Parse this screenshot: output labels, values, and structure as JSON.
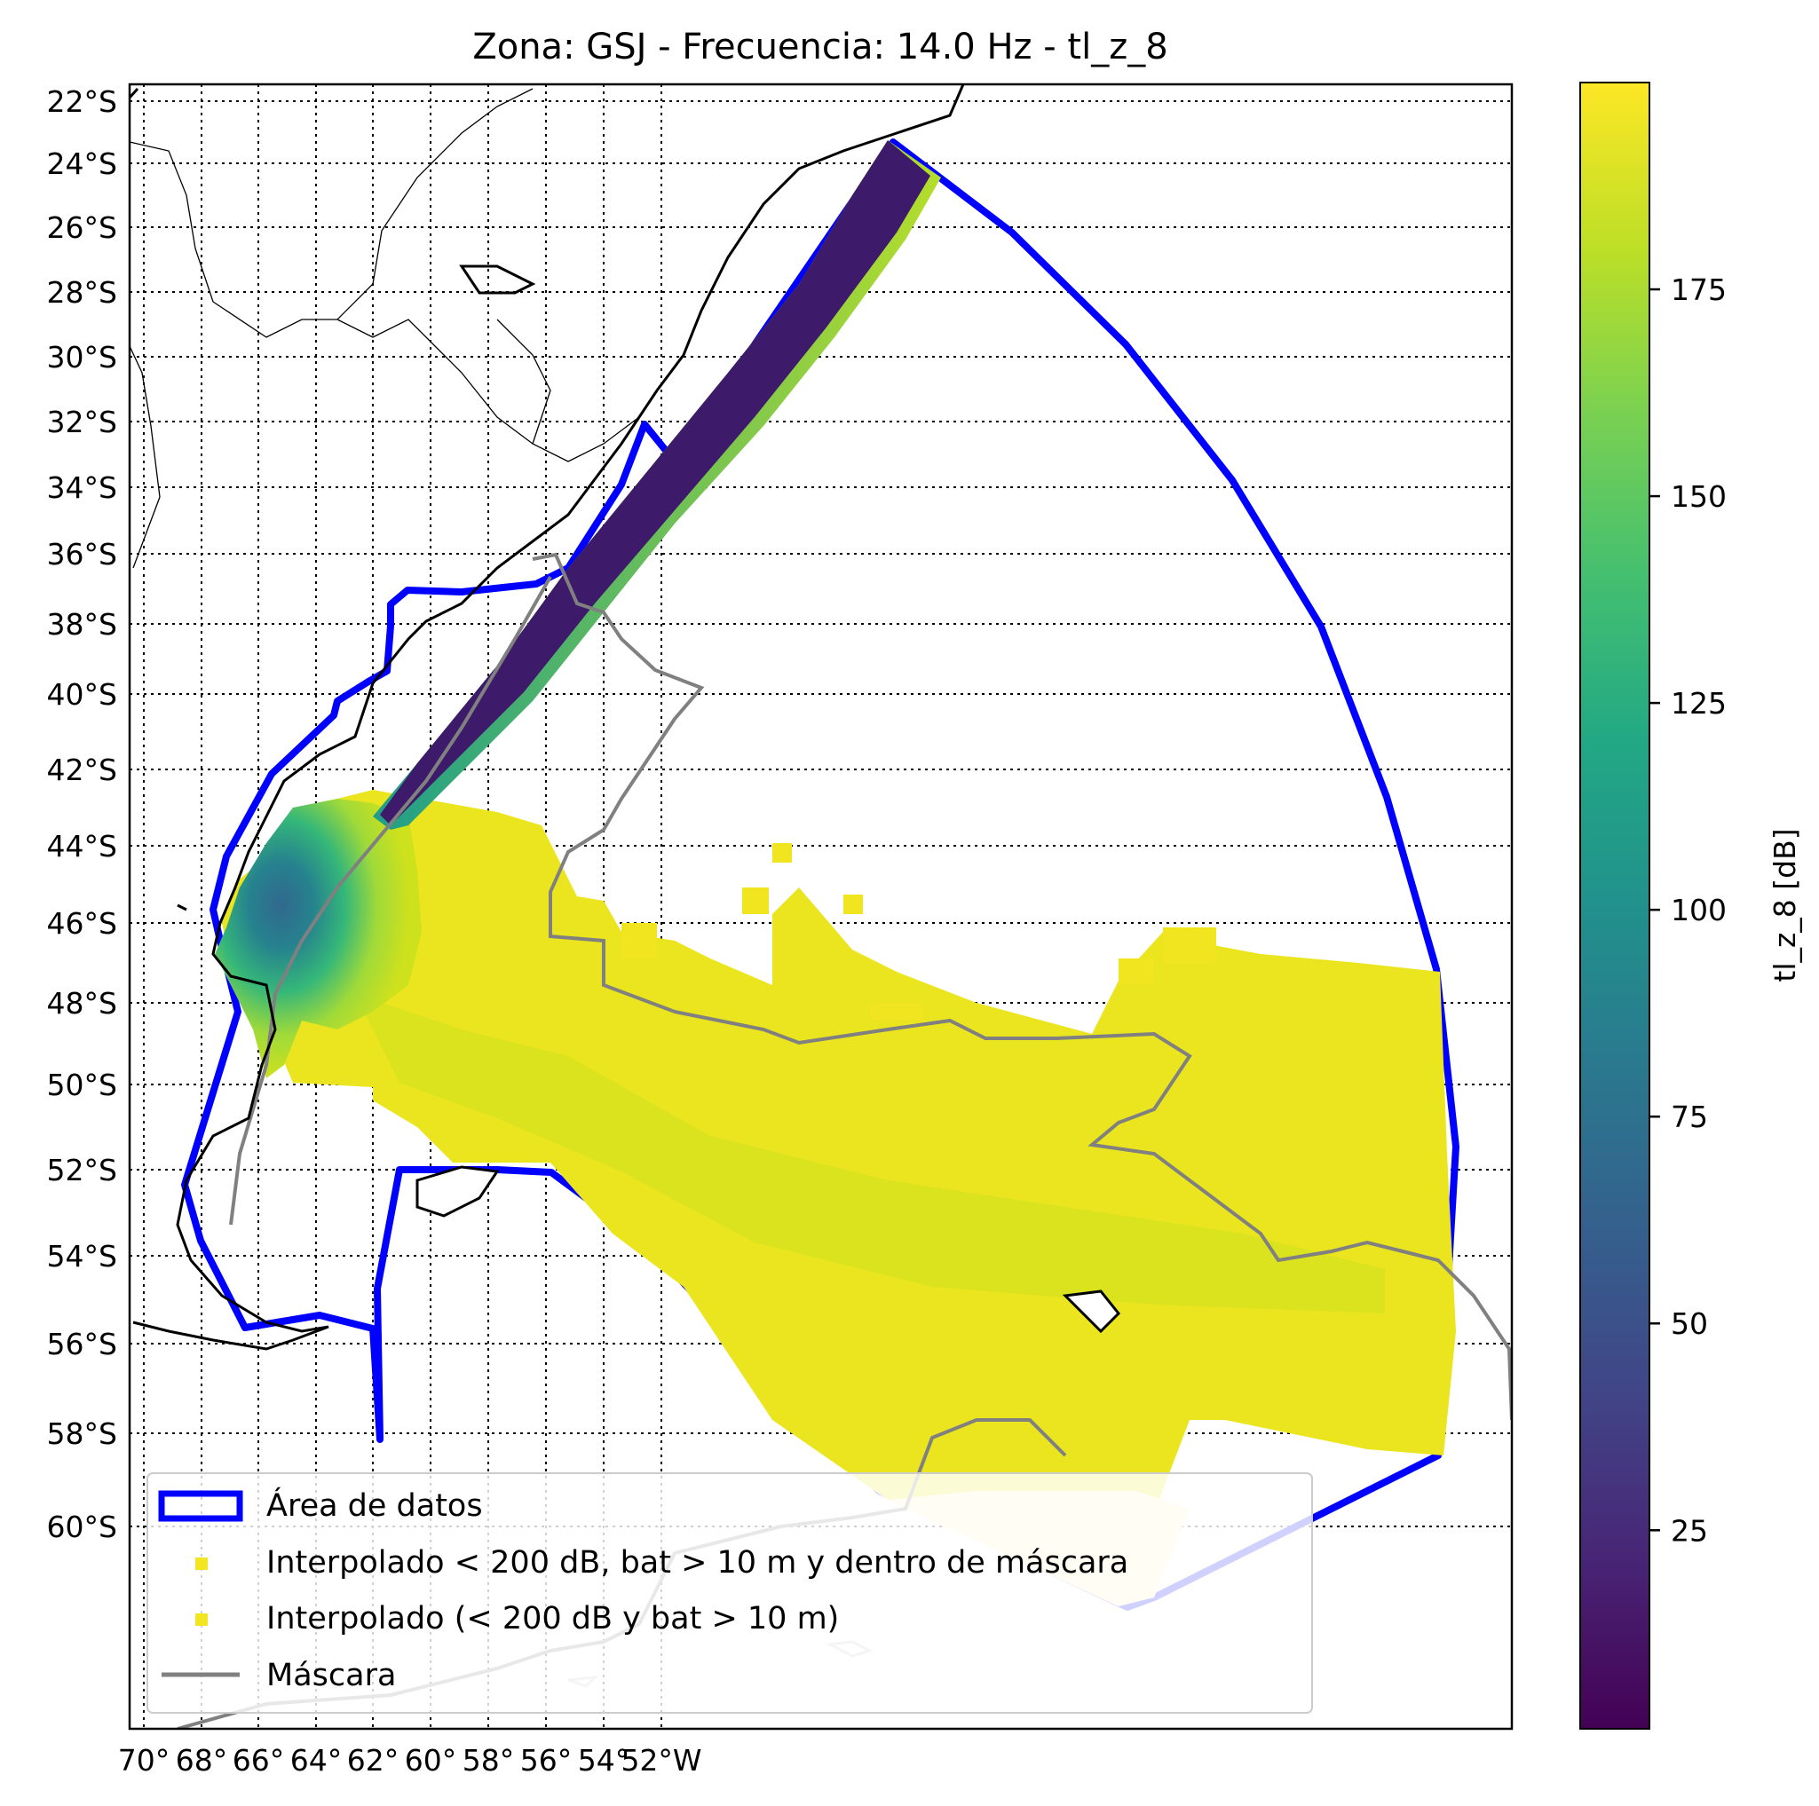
{
  "title": "Zona: GSJ - Frecuencia: 14.0 Hz - tl_z_8",
  "lat_ticks": [
    "22°S",
    "24°S",
    "26°S",
    "28°S",
    "30°S",
    "32°S",
    "34°S",
    "36°S",
    "38°S",
    "40°S",
    "42°S",
    "44°S",
    "46°S",
    "48°S",
    "50°S",
    "52°S",
    "54°S",
    "56°S",
    "58°S",
    "60°S"
  ],
  "lon_ticks": [
    "70°",
    "68°",
    "66°",
    "64°",
    "62°",
    "60°",
    "58°",
    "56°",
    "54°",
    "52°W"
  ],
  "colorbar": {
    "label": "tl_z_8 [dB]",
    "ticks": [
      "25",
      "50",
      "75",
      "100",
      "125",
      "150",
      "175"
    ],
    "range": [
      1,
      200
    ],
    "colormap": "viridis"
  },
  "legend": {
    "items": [
      {
        "label": "Área de datos",
        "color": "#0000ff"
      },
      {
        "label": "Interpolado < 200 dB, bat > 10 m y dentro de máscara",
        "color": "#f3e51f"
      },
      {
        "label": "Interpolado (< 200 dB y bat > 10 m)",
        "color": "#f3e51f"
      },
      {
        "label": "Máscara",
        "color": "#808080"
      }
    ]
  },
  "colors": {
    "data_area": "#0000ff",
    "mask": "#808080",
    "interp_high": "#f1e51d",
    "interp_mid": "#c2df23",
    "interp_low": "#2a9d8a",
    "channel": "#3d1a6a"
  }
}
